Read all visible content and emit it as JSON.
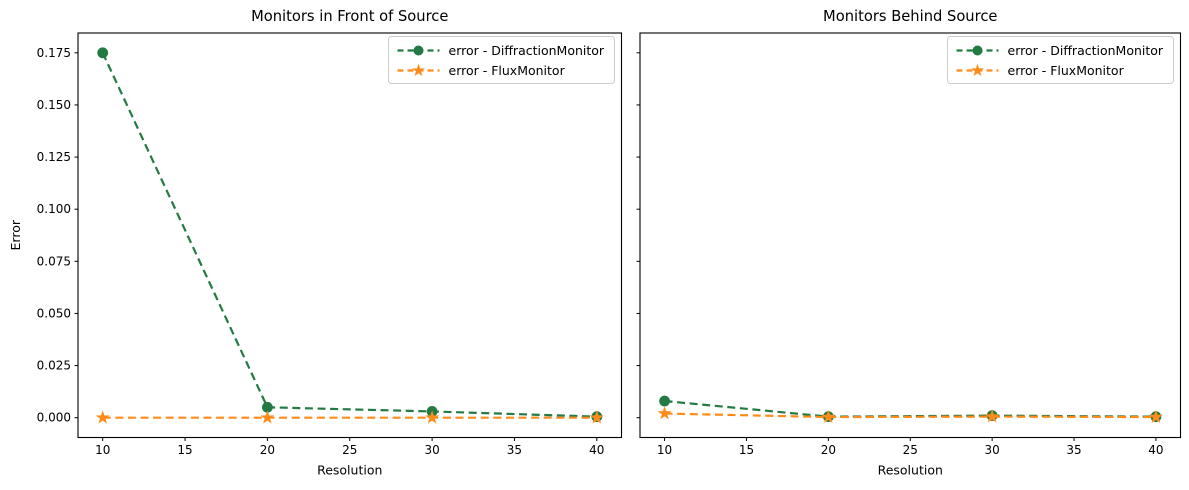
{
  "figure": {
    "background": "#ffffff",
    "text_color": "#000000",
    "spine_color": "#000000",
    "legend_border_color": "#cccccc",
    "legend_background": "#ffffff"
  },
  "chart_data": [
    {
      "type": "line",
      "title": "Monitors in Front of Source",
      "xlabel": "Resolution",
      "ylabel": "Error",
      "x": [
        10,
        20,
        30,
        40
      ],
      "series": [
        {
          "name": "error - DiffractionMonitor",
          "color": "#237a42",
          "marker": "circle",
          "linestyle": "dashed",
          "values": [
            0.175,
            0.005,
            0.003,
            0.0005
          ]
        },
        {
          "name": "error - FluxMonitor",
          "color": "#ff8c1a",
          "marker": "star",
          "linestyle": "dashed",
          "values": [
            0.0,
            0.0,
            0.0,
            0.0
          ]
        }
      ],
      "xlim": [
        8.5,
        41.5
      ],
      "ylim": [
        -0.0095,
        0.1845
      ],
      "xticks": [
        10,
        15,
        20,
        25,
        30,
        35,
        40
      ],
      "xtick_labels": [
        "10",
        "15",
        "20",
        "25",
        "30",
        "35",
        "40"
      ],
      "yticks": [
        0.0,
        0.025,
        0.05,
        0.075,
        0.1,
        0.125,
        0.15,
        0.175
      ],
      "ytick_labels": [
        "0.000",
        "0.025",
        "0.050",
        "0.075",
        "0.100",
        "0.125",
        "0.150",
        "0.175"
      ],
      "show_ytick_labels": true,
      "legend_position": "upper right",
      "grid": false
    },
    {
      "type": "line",
      "title": "Monitors Behind Source",
      "xlabel": "Resolution",
      "ylabel": "",
      "x": [
        10,
        20,
        30,
        40
      ],
      "series": [
        {
          "name": "error - DiffractionMonitor",
          "color": "#237a42",
          "marker": "circle",
          "linestyle": "dashed",
          "values": [
            0.008,
            0.0005,
            0.001,
            0.0005
          ]
        },
        {
          "name": "error - FluxMonitor",
          "color": "#ff8c1a",
          "marker": "star",
          "linestyle": "dashed",
          "values": [
            0.002,
            0.0003,
            0.0005,
            0.0003
          ]
        }
      ],
      "xlim": [
        8.5,
        41.5
      ],
      "ylim": [
        -0.0095,
        0.1845
      ],
      "xticks": [
        10,
        15,
        20,
        25,
        30,
        35,
        40
      ],
      "xtick_labels": [
        "10",
        "15",
        "20",
        "25",
        "30",
        "35",
        "40"
      ],
      "yticks": [
        0.0,
        0.025,
        0.05,
        0.075,
        0.1,
        0.125,
        0.15,
        0.175
      ],
      "ytick_labels": [
        "0.000",
        "0.025",
        "0.050",
        "0.075",
        "0.100",
        "0.125",
        "0.150",
        "0.175"
      ],
      "show_ytick_labels": false,
      "legend_position": "upper right",
      "grid": false
    }
  ]
}
